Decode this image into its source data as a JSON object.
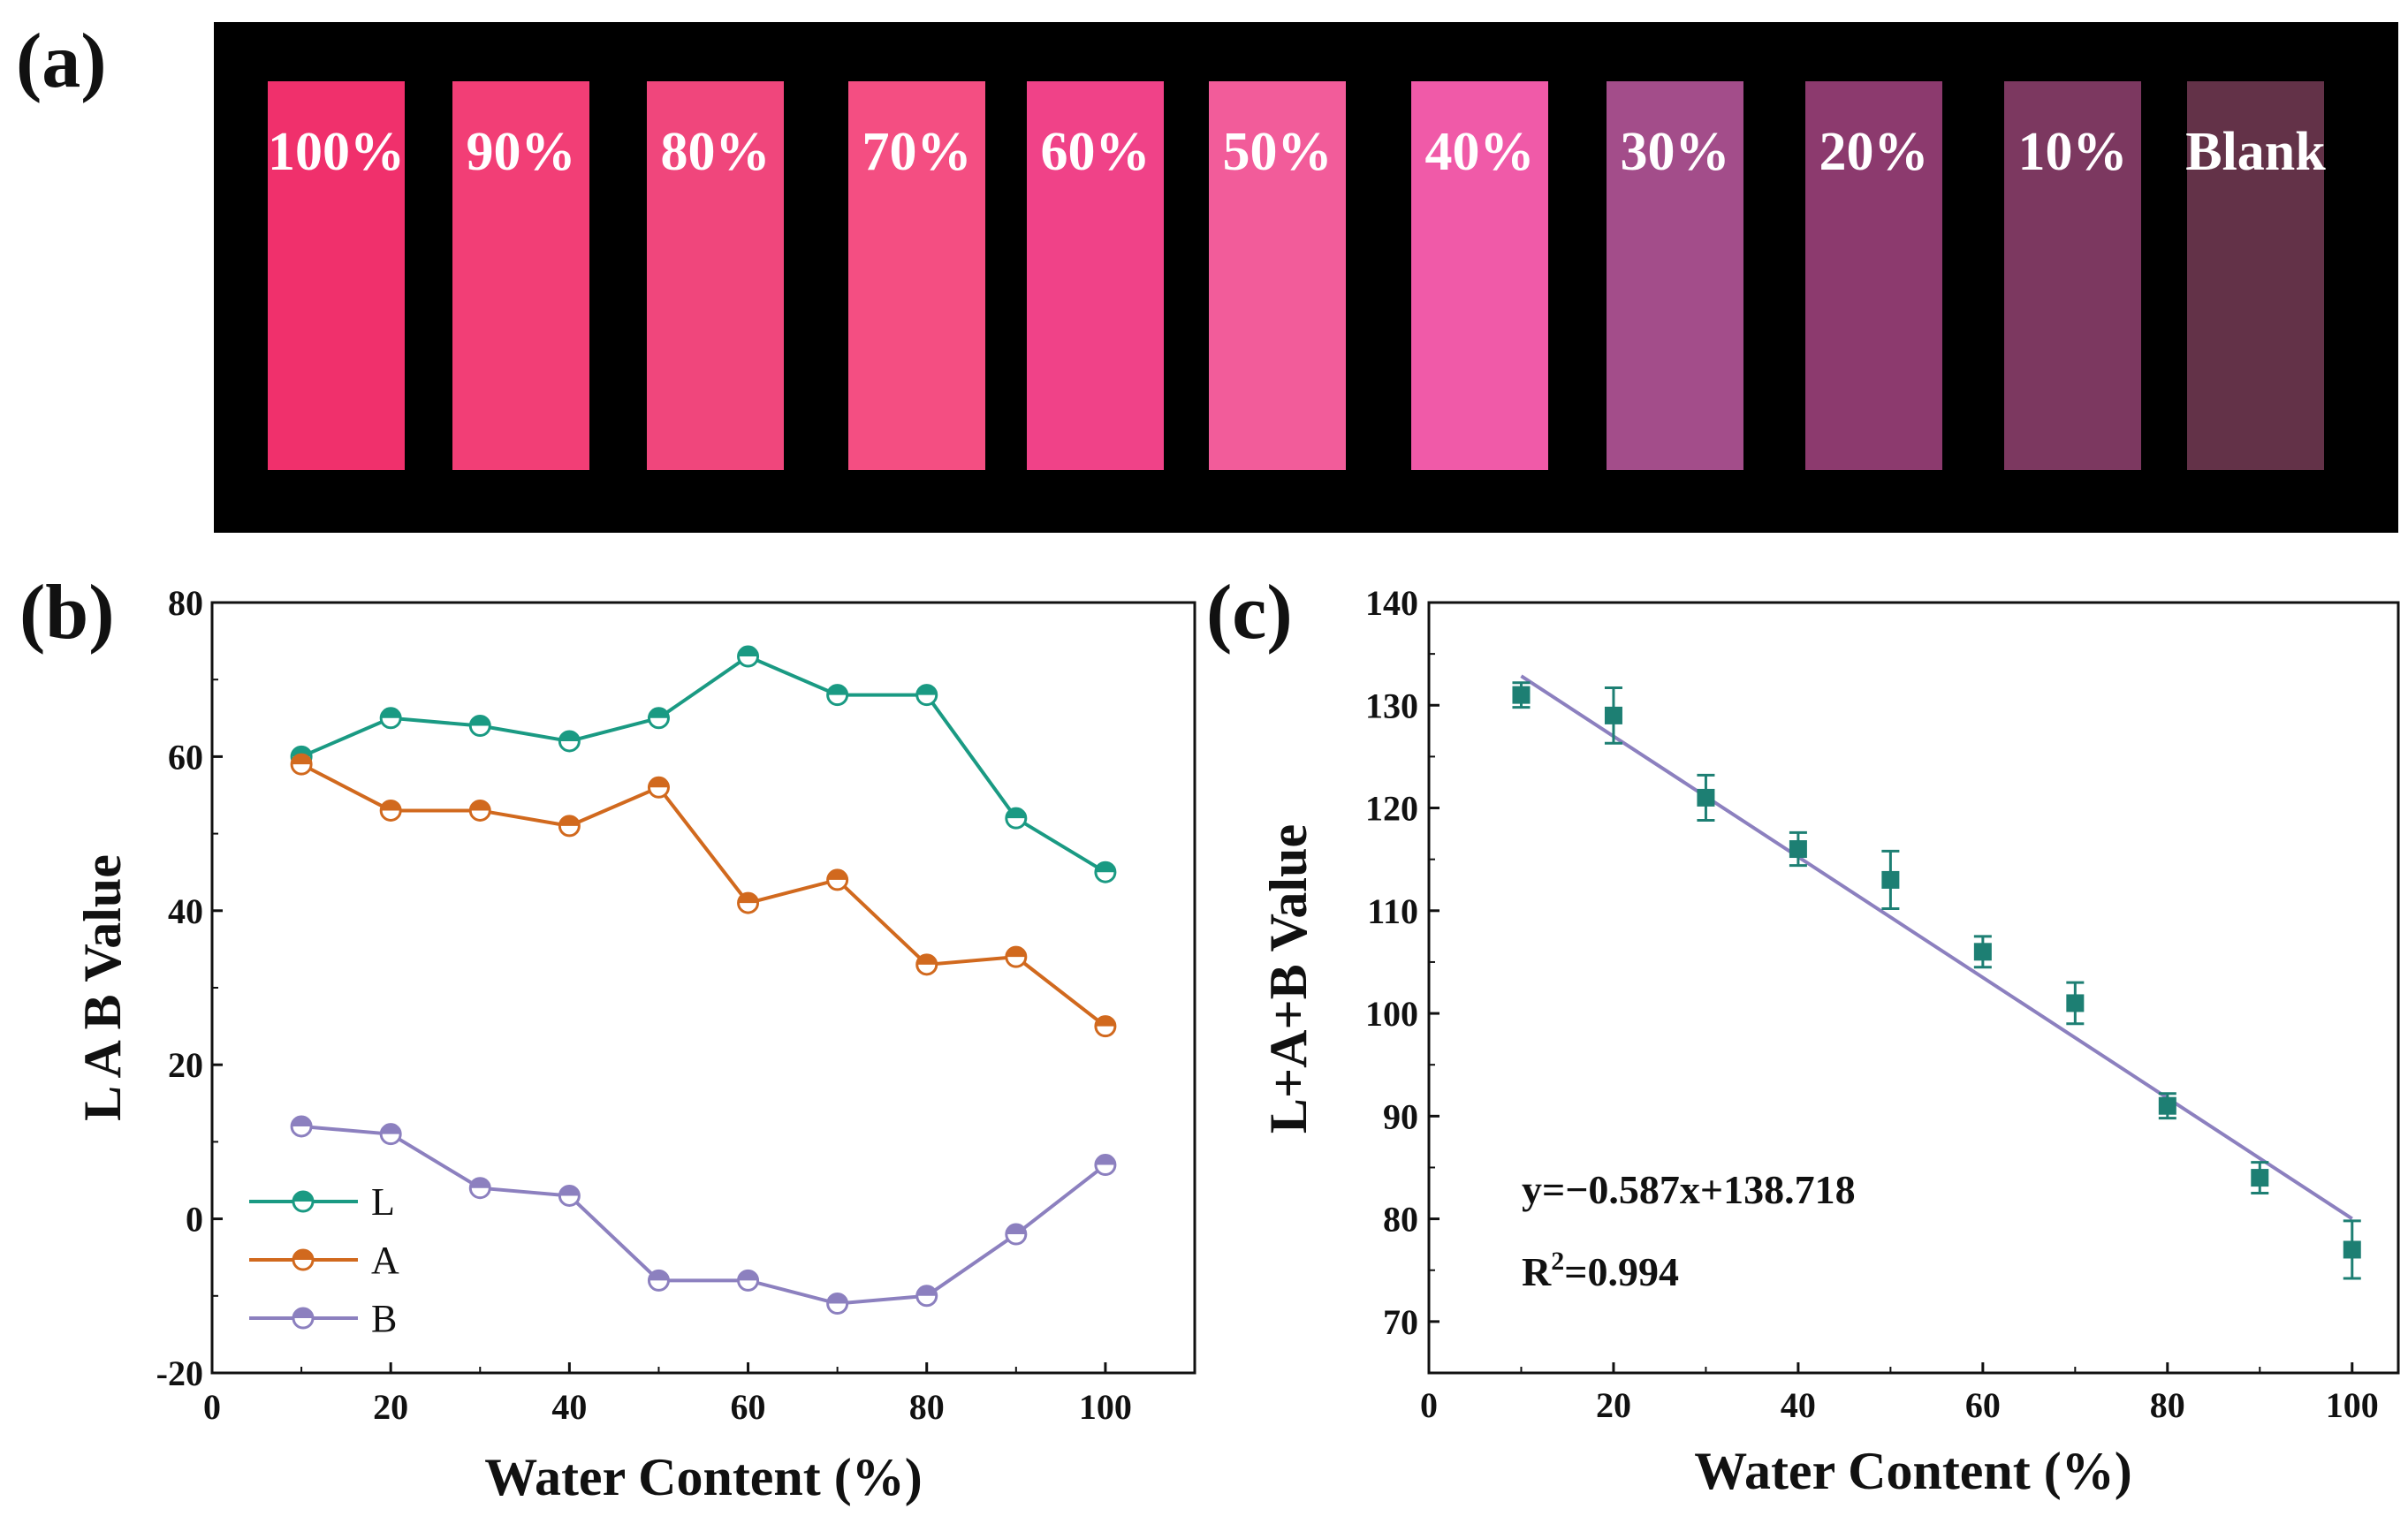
{
  "panel_labels": {
    "a": "(a)",
    "b": "(b)",
    "c": "(c)"
  },
  "colors": {
    "L": "#1a9a83",
    "A": "#d1691e",
    "B": "#8c80bf",
    "scatter": "#1d7f73",
    "fit_line": "#8c80bf",
    "photo_background": "#000000"
  },
  "photo_strips": [
    {
      "label": "100%",
      "color": "#f0306c"
    },
    {
      "label": "90%",
      "color": "#f23e76"
    },
    {
      "label": "80%",
      "color": "#f0467c"
    },
    {
      "label": "70%",
      "color": "#f44e82"
    },
    {
      "label": "60%",
      "color": "#f04288"
    },
    {
      "label": "50%",
      "color": "#f25c9a"
    },
    {
      "label": "40%",
      "color": "#f05aa8"
    },
    {
      "label": "30%",
      "color": "#a34d8a"
    },
    {
      "label": "20%",
      "color": "#8c3a6e"
    },
    {
      "label": "10%",
      "color": "#7c3860"
    },
    {
      "label": "Blank",
      "color": "#633248"
    }
  ],
  "chart_data": [
    {
      "id": "b",
      "type": "line",
      "xlabel": "Water Content (%)",
      "ylabel": "L A B Value",
      "xlim": [
        0,
        110
      ],
      "ylim": [
        -20,
        80
      ],
      "xticks": [
        0,
        20,
        40,
        60,
        80,
        100
      ],
      "yticks": [
        -20,
        0,
        20,
        40,
        60,
        80
      ],
      "legend_position": "bottom-left",
      "x": [
        10,
        20,
        30,
        40,
        50,
        60,
        70,
        80,
        90,
        100
      ],
      "series": [
        {
          "name": "L",
          "values": [
            60,
            65,
            64,
            62,
            65,
            73,
            68,
            68,
            52,
            45
          ]
        },
        {
          "name": "A",
          "values": [
            59,
            53,
            53,
            51,
            56,
            41,
            44,
            33,
            34,
            25
          ]
        },
        {
          "name": "B",
          "values": [
            12,
            11,
            4,
            3,
            -8,
            -8,
            -11,
            -10,
            -2,
            7
          ]
        }
      ]
    },
    {
      "id": "c",
      "type": "scatter",
      "xlabel": "Water Content (%)",
      "ylabel": "L+A+B Value",
      "xlim": [
        0,
        105
      ],
      "ylim": [
        65,
        140
      ],
      "xticks": [
        0,
        20,
        40,
        60,
        80,
        100
      ],
      "yticks": [
        70,
        80,
        90,
        100,
        110,
        120,
        130,
        140
      ],
      "x": [
        10,
        20,
        30,
        40,
        50,
        60,
        70,
        80,
        90,
        100
      ],
      "values": [
        131,
        129,
        121,
        116,
        113,
        106,
        101,
        91,
        84,
        77
      ],
      "errors": [
        1.2,
        2.7,
        2.2,
        1.6,
        2.8,
        1.5,
        2.0,
        1.2,
        1.5,
        2.8
      ],
      "fit": {
        "slope": -0.587,
        "intercept": 138.718,
        "x_range": [
          10,
          100
        ]
      },
      "equation": "y=−0.587x+138.718",
      "r2_prefix": "R",
      "r2_sup": "2",
      "r2_value": "=0.994"
    }
  ]
}
